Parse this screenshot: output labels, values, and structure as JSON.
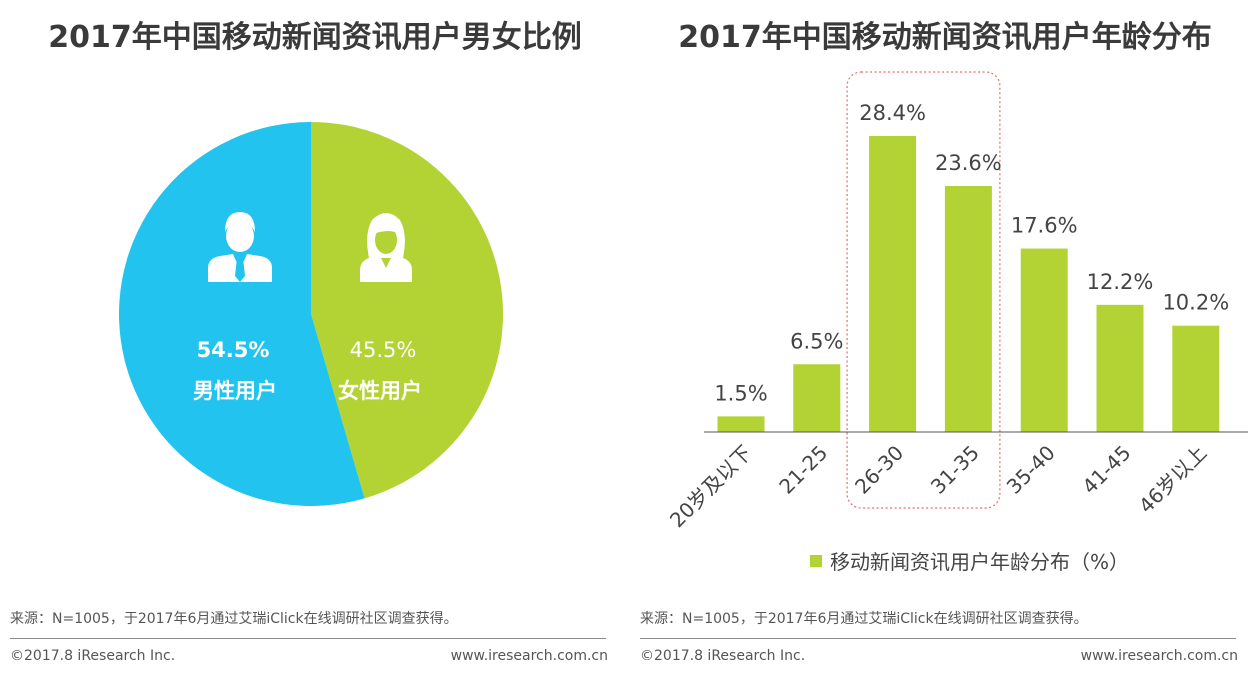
{
  "colors": {
    "male": "#22c3ee",
    "female": "#b3d234",
    "bar": "#b3d234",
    "highlight": "#e56b6b"
  },
  "footer": {
    "source": "来源：N=1005，于2017年6月通过艾瑞iClick在线调研社区调查获得。",
    "copyright": "©2017.8 iResearch Inc.",
    "website": "www.iresearch.com.cn"
  },
  "chart_data": [
    {
      "type": "pie",
      "title": "2017年中国移动新闻资讯用户男女比例",
      "slices": [
        {
          "name": "男性用户",
          "value": 54.5,
          "label": "54.5%",
          "color": "#22c3ee",
          "icon": "male-user-icon"
        },
        {
          "name": "女性用户",
          "value": 45.5,
          "label": "45.5%",
          "color": "#b3d234",
          "icon": "female-user-icon"
        }
      ]
    },
    {
      "type": "bar",
      "title": "2017年中国移动新闻资讯用户年龄分布",
      "categories": [
        "20岁及以下",
        "21-25",
        "26-30",
        "31-35",
        "35-40",
        "41-45",
        "46岁以上"
      ],
      "series": [
        {
          "name": "移动新闻资讯用户年龄分布（%）",
          "values": [
            1.5,
            6.5,
            28.4,
            23.6,
            17.6,
            12.2,
            10.2
          ]
        }
      ],
      "value_labels": [
        "1.5%",
        "6.5%",
        "28.4%",
        "23.6%",
        "17.6%",
        "12.2%",
        "10.2%"
      ],
      "ylim": [
        0,
        28.4
      ],
      "legend": "bottom",
      "highlight_categories": [
        "26-30",
        "31-35"
      ]
    }
  ]
}
